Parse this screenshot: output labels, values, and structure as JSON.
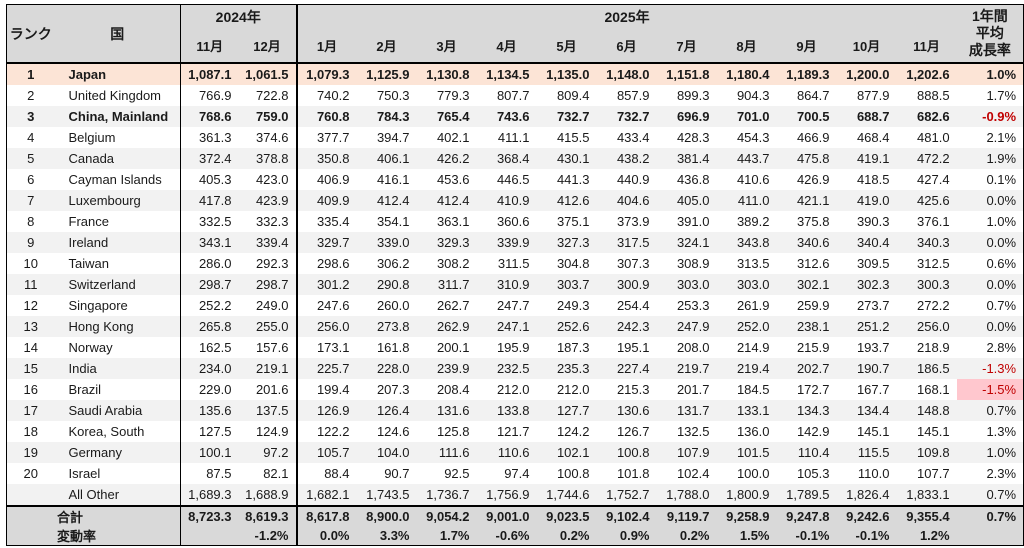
{
  "table": {
    "header": {
      "rank": "ランク",
      "country": "国",
      "year2024": "2024年",
      "year2025": "2025年",
      "months2024": [
        "11月",
        "12月"
      ],
      "months2025": [
        "1月",
        "2月",
        "3月",
        "4月",
        "5月",
        "6月",
        "7月",
        "8月",
        "9月",
        "10月",
        "11月"
      ],
      "growth_lines": [
        "1年間",
        "平均",
        "成長率"
      ]
    },
    "footer": {
      "total_label": "合計",
      "change_label": "変動率"
    },
    "colors": {
      "header_bg": "#d9d9d9",
      "stripe_bg": "#f2f2f2",
      "highlight_row_bg": "#fce4d6",
      "negative_cell_bg": "#ffc7ce",
      "negative_text": "#c00000",
      "footer_bg": "#d9d9d9",
      "border": "#000000"
    }
  },
  "chart_data": {
    "type": "table",
    "title": "",
    "column_groups": [
      {
        "label": "2024年",
        "months": [
          "11月",
          "12月"
        ]
      },
      {
        "label": "2025年",
        "months": [
          "1月",
          "2月",
          "3月",
          "4月",
          "5月",
          "6月",
          "7月",
          "8月",
          "9月",
          "10月",
          "11月"
        ]
      }
    ],
    "growth_column_label": "1年間平均成長率",
    "rows": [
      {
        "rank": "1",
        "country": "Japan",
        "values": [
          1087.1,
          1061.5,
          1079.3,
          1125.9,
          1130.8,
          1134.5,
          1135.0,
          1148.0,
          1151.8,
          1180.4,
          1189.3,
          1200.0,
          1202.6
        ],
        "growth": "1.0%",
        "bold": true,
        "bg": "peach"
      },
      {
        "rank": "2",
        "country": "United Kingdom",
        "values": [
          766.9,
          722.8,
          740.2,
          750.3,
          779.3,
          807.7,
          809.4,
          857.9,
          899.3,
          904.3,
          864.7,
          877.9,
          888.5
        ],
        "growth": "1.7%",
        "bold": false,
        "bg": ""
      },
      {
        "rank": "3",
        "country": "China, Mainland",
        "values": [
          768.6,
          759.0,
          760.8,
          784.3,
          765.4,
          743.6,
          732.7,
          732.7,
          696.9,
          701.0,
          700.5,
          688.7,
          682.6
        ],
        "growth": "-0.9%",
        "bold": true,
        "bg": ""
      },
      {
        "rank": "4",
        "country": "Belgium",
        "values": [
          361.3,
          374.6,
          377.7,
          394.7,
          402.1,
          411.1,
          415.5,
          433.4,
          428.3,
          454.3,
          466.9,
          468.4,
          481.0
        ],
        "growth": "2.1%",
        "bold": false,
        "bg": ""
      },
      {
        "rank": "5",
        "country": "Canada",
        "values": [
          372.4,
          378.8,
          350.8,
          406.1,
          426.2,
          368.4,
          430.1,
          438.2,
          381.4,
          443.7,
          475.8,
          419.1,
          472.2
        ],
        "growth": "1.9%",
        "bold": false,
        "bg": ""
      },
      {
        "rank": "6",
        "country": "Cayman Islands",
        "values": [
          405.3,
          423.0,
          406.9,
          416.1,
          453.6,
          446.5,
          441.3,
          440.9,
          436.8,
          410.6,
          426.9,
          418.5,
          427.4
        ],
        "growth": "0.1%",
        "bold": false,
        "bg": ""
      },
      {
        "rank": "7",
        "country": "Luxembourg",
        "values": [
          417.8,
          423.9,
          409.9,
          412.4,
          412.4,
          410.9,
          412.6,
          404.6,
          405.0,
          411.0,
          421.1,
          419.0,
          425.6
        ],
        "growth": "0.0%",
        "bold": false,
        "bg": ""
      },
      {
        "rank": "8",
        "country": "France",
        "values": [
          332.5,
          332.3,
          335.4,
          354.1,
          363.1,
          360.6,
          375.1,
          373.9,
          391.0,
          389.2,
          375.8,
          390.3,
          376.1
        ],
        "growth": "1.0%",
        "bold": false,
        "bg": ""
      },
      {
        "rank": "9",
        "country": "Ireland",
        "values": [
          343.1,
          339.4,
          329.7,
          339.0,
          329.3,
          339.9,
          327.3,
          317.5,
          324.1,
          343.8,
          340.6,
          340.4,
          340.3
        ],
        "growth": "0.0%",
        "bold": false,
        "bg": ""
      },
      {
        "rank": "10",
        "country": "Taiwan",
        "values": [
          286.0,
          292.3,
          298.6,
          306.2,
          308.2,
          311.5,
          304.8,
          307.3,
          308.9,
          313.5,
          312.6,
          309.5,
          312.5
        ],
        "growth": "0.6%",
        "bold": false,
        "bg": ""
      },
      {
        "rank": "11",
        "country": "Switzerland",
        "values": [
          298.7,
          298.7,
          301.2,
          290.8,
          311.7,
          310.9,
          303.7,
          300.9,
          303.0,
          303.0,
          302.1,
          302.3,
          300.3
        ],
        "growth": "0.0%",
        "bold": false,
        "bg": ""
      },
      {
        "rank": "12",
        "country": "Singapore",
        "values": [
          252.2,
          249.0,
          247.6,
          260.0,
          262.7,
          247.7,
          249.3,
          254.4,
          253.3,
          261.9,
          259.9,
          273.7,
          272.2
        ],
        "growth": "0.7%",
        "bold": false,
        "bg": ""
      },
      {
        "rank": "13",
        "country": "Hong Kong",
        "values": [
          265.8,
          255.0,
          256.0,
          273.8,
          262.9,
          247.1,
          252.6,
          242.3,
          247.9,
          252.0,
          238.1,
          251.2,
          256.0
        ],
        "growth": "0.0%",
        "bold": false,
        "bg": ""
      },
      {
        "rank": "14",
        "country": "Norway",
        "values": [
          162.5,
          157.6,
          173.1,
          161.8,
          200.1,
          195.9,
          187.3,
          195.1,
          208.0,
          214.9,
          215.9,
          193.7,
          218.9
        ],
        "growth": "2.8%",
        "bold": false,
        "bg": ""
      },
      {
        "rank": "15",
        "country": "India",
        "values": [
          234.0,
          219.1,
          225.7,
          228.0,
          239.9,
          232.5,
          235.3,
          227.4,
          219.7,
          219.4,
          202.7,
          190.7,
          186.5
        ],
        "growth": "-1.3%",
        "bold": false,
        "bg": ""
      },
      {
        "rank": "16",
        "country": "Brazil",
        "values": [
          229.0,
          201.6,
          199.4,
          207.3,
          208.4,
          212.0,
          212.0,
          215.3,
          201.7,
          184.5,
          172.7,
          167.7,
          168.1
        ],
        "growth": "-1.5%",
        "bold": false,
        "bg": ""
      },
      {
        "rank": "17",
        "country": "Saudi Arabia",
        "values": [
          135.6,
          137.5,
          126.9,
          126.4,
          131.6,
          133.8,
          127.7,
          130.6,
          131.7,
          133.1,
          134.3,
          134.4,
          148.8
        ],
        "growth": "0.7%",
        "bold": false,
        "bg": ""
      },
      {
        "rank": "18",
        "country": "Korea, South",
        "values": [
          127.5,
          124.9,
          122.2,
          124.6,
          125.8,
          121.7,
          124.2,
          126.7,
          132.5,
          136.0,
          142.9,
          145.1,
          145.1
        ],
        "growth": "1.3%",
        "bold": false,
        "bg": ""
      },
      {
        "rank": "19",
        "country": "Germany",
        "values": [
          100.1,
          97.2,
          105.7,
          104.0,
          111.6,
          110.6,
          102.1,
          100.8,
          107.9,
          101.5,
          110.4,
          115.5,
          109.8
        ],
        "growth": "1.0%",
        "bold": false,
        "bg": ""
      },
      {
        "rank": "20",
        "country": "Israel",
        "values": [
          87.5,
          82.1,
          88.4,
          90.7,
          92.5,
          97.4,
          100.8,
          101.8,
          102.4,
          100.0,
          105.3,
          110.0,
          107.7
        ],
        "growth": "2.3%",
        "bold": false,
        "bg": ""
      },
      {
        "rank": "",
        "country": "All Other",
        "values": [
          1689.3,
          1688.9,
          1682.1,
          1743.5,
          1736.7,
          1756.9,
          1744.6,
          1752.7,
          1788.0,
          1800.9,
          1789.5,
          1826.4,
          1833.1
        ],
        "growth": "0.7%",
        "bold": false,
        "bg": ""
      }
    ],
    "total": {
      "values": [
        8723.3,
        8619.3,
        8617.8,
        8900.0,
        9054.2,
        9001.0,
        9023.5,
        9102.4,
        9119.7,
        9258.9,
        9247.8,
        9242.6,
        9355.4
      ],
      "growth": "0.7%"
    },
    "change_pct": [
      "",
      "-1.2%",
      "0.0%",
      "3.3%",
      "1.7%",
      "-0.6%",
      "0.2%",
      "0.9%",
      "0.2%",
      "1.5%",
      "-0.1%",
      "-0.1%",
      "1.2%"
    ],
    "change_growth": ""
  }
}
